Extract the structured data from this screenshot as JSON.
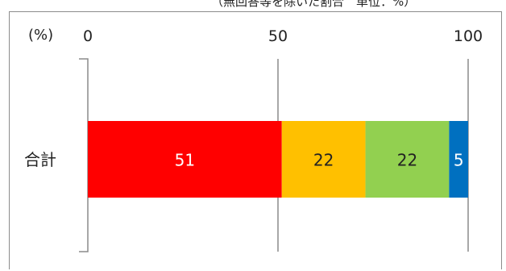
{
  "note": "（無回答等を除いた割合　単位：%）",
  "chart_data": {
    "type": "bar",
    "orientation": "horizontal",
    "stacked": true,
    "unit_label": "(%)",
    "categories": [
      "合計"
    ],
    "ticks": [
      0,
      50,
      100
    ],
    "xlim": [
      0,
      100
    ],
    "grid": true,
    "series": [
      {
        "values": [
          51
        ],
        "color": "#ff0000",
        "label_color": "#ffffff"
      },
      {
        "values": [
          22
        ],
        "color": "#ffc000",
        "label_color": "#222222"
      },
      {
        "values": [
          22
        ],
        "color": "#92d050",
        "label_color": "#222222"
      },
      {
        "values": [
          5
        ],
        "color": "#0070c0",
        "label_color": "#ffffff"
      }
    ]
  }
}
